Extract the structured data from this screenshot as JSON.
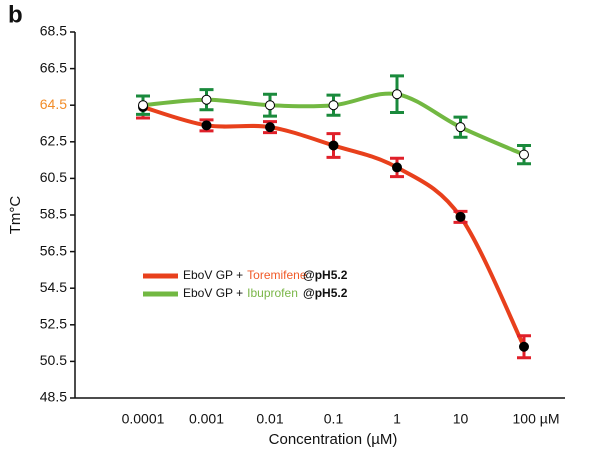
{
  "panel_label": "b",
  "chart_data": {
    "type": "line",
    "x_label": "Concentration  (µM)",
    "y_label": "Tm°C",
    "categories": [
      "0.0001",
      "0.001",
      "0.01",
      "0.1",
      "1",
      "10",
      "100 µM"
    ],
    "ylim": [
      48.5,
      68.5
    ],
    "yticks": [
      68.5,
      66.5,
      64.5,
      62.5,
      60.5,
      58.5,
      56.5,
      54.5,
      52.5,
      50.5,
      48.5
    ],
    "highlight_ytick": 64.5,
    "highlight_color": "#f28c28",
    "legend_prefix": "EboV GP +",
    "legend_suffix": "@pH5.2",
    "series": [
      {
        "name": "Toremifene",
        "color": "#e8401c",
        "error_color": "#e0202a",
        "label_color": "#f05a28",
        "marker_fill": "#000",
        "values": [
          64.4,
          63.4,
          63.3,
          62.3,
          61.1,
          58.4,
          51.3
        ],
        "errors": [
          0.6,
          0.3,
          0.3,
          0.65,
          0.5,
          0.3,
          0.6
        ]
      },
      {
        "name": "Ibuprofen",
        "color": "#72b842",
        "error_color": "#1a8a3c",
        "label_color": "#7ab648",
        "marker_fill": "#fff",
        "values": [
          64.5,
          64.8,
          64.5,
          64.5,
          65.1,
          63.3,
          61.8
        ],
        "errors": [
          0.5,
          0.55,
          0.6,
          0.55,
          1.0,
          0.55,
          0.5
        ]
      }
    ]
  }
}
